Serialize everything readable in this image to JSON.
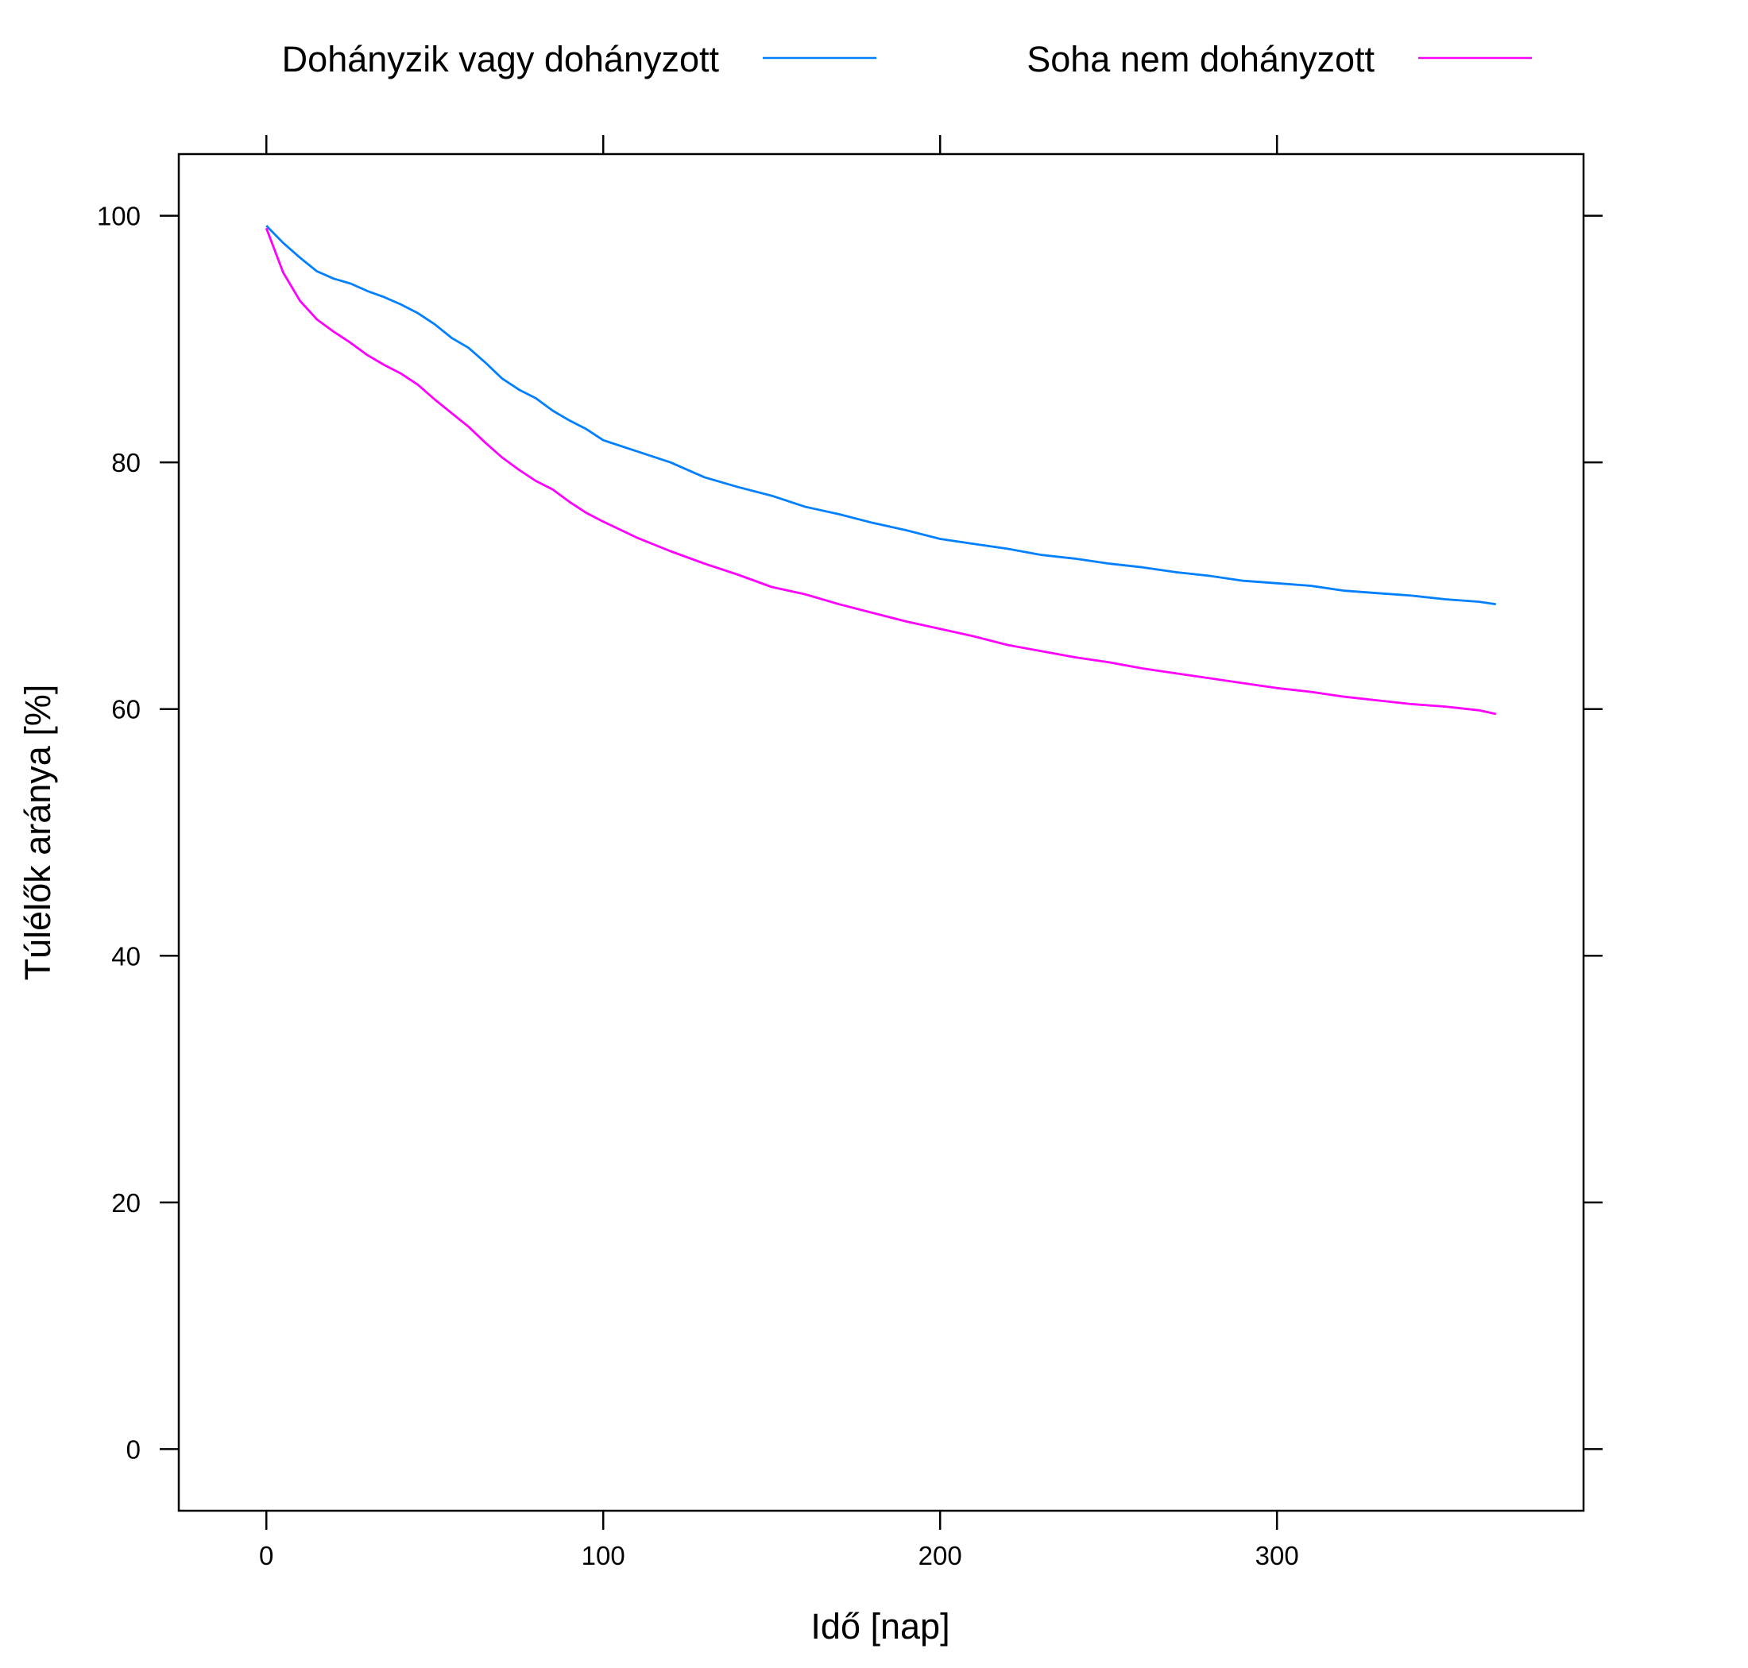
{
  "chart_data": {
    "type": "line",
    "title": "",
    "xlabel": "Idő [nap]",
    "ylabel": "Túlélők aránya [%]",
    "xlim": [
      -26,
      391
    ],
    "ylim": [
      -5,
      105
    ],
    "xticks": [
      0,
      100,
      200,
      300
    ],
    "yticks": [
      0,
      20,
      40,
      60,
      80,
      100
    ],
    "grid": false,
    "legend_position": "top",
    "series": [
      {
        "name": "Dohányzik vagy dohányzott",
        "color": "#0080ff",
        "x": [
          0,
          5,
          10,
          15,
          20,
          25,
          30,
          35,
          40,
          45,
          50,
          55,
          60,
          65,
          70,
          75,
          80,
          85,
          90,
          95,
          100,
          110,
          120,
          130,
          140,
          150,
          160,
          170,
          180,
          190,
          200,
          210,
          220,
          230,
          240,
          250,
          260,
          270,
          280,
          290,
          300,
          310,
          320,
          330,
          340,
          350,
          360,
          365
        ],
        "values": [
          99.2,
          97.8,
          96.6,
          95.5,
          94.9,
          94.5,
          93.9,
          93.4,
          92.8,
          92.1,
          91.2,
          90.1,
          89.3,
          88.1,
          86.8,
          85.9,
          85.2,
          84.2,
          83.4,
          82.7,
          81.8,
          80.9,
          80.0,
          78.8,
          78.0,
          77.3,
          76.4,
          75.8,
          75.1,
          74.5,
          73.8,
          73.4,
          73.0,
          72.5,
          72.2,
          71.8,
          71.5,
          71.1,
          70.8,
          70.4,
          70.2,
          70.0,
          69.6,
          69.4,
          69.2,
          68.9,
          68.7,
          68.5
        ]
      },
      {
        "name": "Soha nem dohányzott",
        "color": "#ff00ff",
        "x": [
          0,
          5,
          10,
          15,
          20,
          25,
          30,
          35,
          40,
          45,
          50,
          55,
          60,
          65,
          70,
          75,
          80,
          85,
          90,
          95,
          100,
          110,
          120,
          130,
          140,
          150,
          160,
          170,
          180,
          190,
          200,
          210,
          220,
          230,
          240,
          250,
          260,
          270,
          280,
          290,
          300,
          310,
          320,
          330,
          340,
          350,
          360,
          365
        ],
        "values": [
          99.0,
          95.4,
          93.1,
          91.6,
          90.6,
          89.7,
          88.7,
          87.9,
          87.2,
          86.3,
          85.1,
          84.0,
          82.9,
          81.6,
          80.4,
          79.4,
          78.5,
          77.8,
          76.8,
          75.9,
          75.2,
          73.9,
          72.8,
          71.8,
          70.9,
          69.9,
          69.3,
          68.5,
          67.8,
          67.1,
          66.5,
          65.9,
          65.2,
          64.7,
          64.2,
          63.8,
          63.3,
          62.9,
          62.5,
          62.1,
          61.7,
          61.4,
          61.0,
          60.7,
          60.4,
          60.2,
          59.9,
          59.6
        ]
      }
    ]
  }
}
